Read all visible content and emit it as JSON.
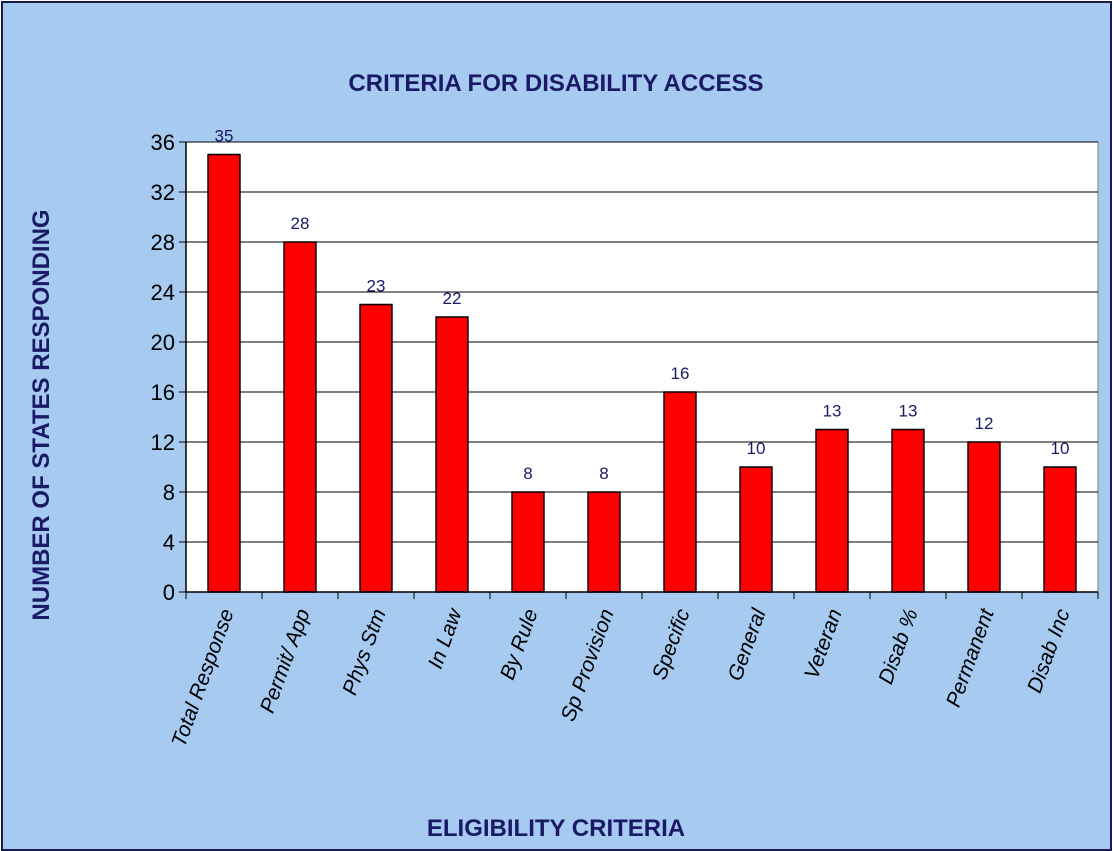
{
  "chart_data": {
    "type": "bar",
    "title": "CRITERIA FOR DISABILITY ACCESS",
    "xlabel": "ELIGIBILITY CRITERIA",
    "ylabel": "NUMBER OF STATES RESPONDING",
    "categories": [
      "Total Response",
      "Permit/ App",
      "Phys Stm",
      "In Law",
      "By Rule",
      "Sp Provision",
      "Specific",
      "General",
      "Veteran",
      "Disab %",
      "Permanent",
      "Disab Inc"
    ],
    "values": [
      35,
      28,
      23,
      22,
      8,
      8,
      16,
      10,
      13,
      13,
      12,
      10
    ],
    "ylim": [
      0,
      36
    ],
    "yticks": [
      "0",
      "4",
      "8",
      "12",
      "16",
      "20",
      "24",
      "28",
      "32",
      "36"
    ],
    "grid": true,
    "data_labels": true,
    "bar_color": "#ff0000",
    "plot_background": "#ffffff",
    "background": "#a6caf0"
  }
}
